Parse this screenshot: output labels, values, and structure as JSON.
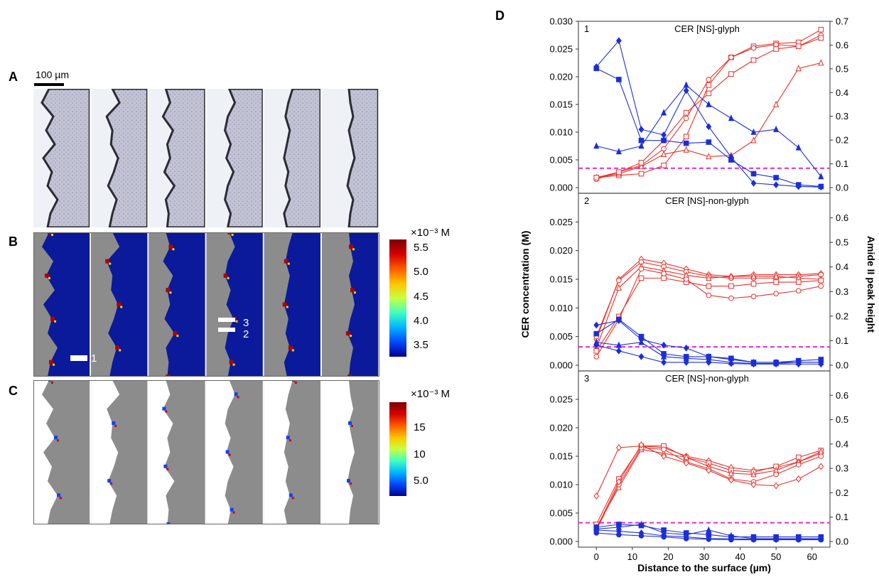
{
  "panels": {
    "A": {
      "letter": "A",
      "scale_bar_label": "100 µm"
    },
    "B": {
      "letter": "B",
      "markers": [
        "1",
        "3",
        "2"
      ],
      "colorbar": {
        "title": "×10⁻³ M",
        "ticks": [
          "5.5",
          "5.0",
          "4.5",
          "4.0",
          "3.5"
        ]
      }
    },
    "C": {
      "letter": "C",
      "colorbar": {
        "title": "×10⁻³ M",
        "ticks": [
          "15",
          "10",
          "5.0"
        ]
      }
    },
    "D": {
      "letter": "D"
    }
  },
  "colors": {
    "background_map_B": "#0a1a9a",
    "tissue_gray": "#8c8c8c",
    "series_red": "#e8312a",
    "series_blue": "#1c2fd6",
    "threshold_magenta": "#e22ad8"
  },
  "chart_data": [
    {
      "type": "line",
      "panel_number": "1",
      "title": "CER [NS]-glyph",
      "ylabel_left": "CER concentration (M)",
      "ylabel_right": "Amide II peak height",
      "xlabel": "Distance to the surface (µm)",
      "xlim": [
        -5,
        65
      ],
      "ylim_left": [
        0,
        0.03
      ],
      "ylim_right": [
        0,
        0.7
      ],
      "xticks": [
        "0",
        "10",
        "20",
        "30",
        "40",
        "50",
        "60"
      ],
      "yticks_left": [
        "0.000",
        "0.005",
        "0.010",
        "0.015",
        "0.020",
        "0.025",
        "0.030"
      ],
      "yticks_right": [
        "0.0",
        "0.1",
        "0.2",
        "0.3",
        "0.4",
        "0.5",
        "0.6",
        "0.7"
      ],
      "threshold": 0.0035,
      "x": [
        0,
        6.25,
        12.5,
        18.75,
        25,
        31.25,
        37.5,
        43.75,
        50,
        56.25,
        62.5
      ],
      "series_red": [
        {
          "marker": "square",
          "values": [
            0.0018,
            0.0022,
            0.0025,
            0.004,
            0.0092,
            0.0185,
            0.0235,
            0.0255,
            0.026,
            0.0262,
            0.0285
          ]
        },
        {
          "marker": "circle",
          "values": [
            0.0015,
            0.0028,
            0.004,
            0.007,
            0.0125,
            0.0195,
            0.0235,
            0.0252,
            0.0258,
            0.0255,
            0.0275
          ]
        },
        {
          "marker": "triangle",
          "values": [
            0.0018,
            0.0025,
            0.0038,
            0.006,
            0.0068,
            0.0056,
            0.0058,
            0.0085,
            0.015,
            0.0215,
            0.0225
          ]
        },
        {
          "marker": "square",
          "values": [
            0.0018,
            0.0028,
            0.0045,
            0.0085,
            0.0135,
            0.017,
            0.0205,
            0.023,
            0.025,
            0.0255,
            0.027
          ]
        }
      ],
      "series_blue": [
        {
          "marker": "square",
          "values": [
            0.0215,
            0.0195,
            0.0085,
            0.0085,
            0.008,
            0.0082,
            0.005,
            0.0025,
            0.0018,
            0.0005,
            0.0002
          ]
        },
        {
          "marker": "triangle",
          "values": [
            0.0075,
            0.0065,
            0.0075,
            0.0135,
            0.0185,
            0.015,
            0.0125,
            0.01,
            0.0105,
            0.0072,
            0.002
          ]
        },
        {
          "marker": "diamond",
          "values": [
            0.0218,
            0.0265,
            0.0105,
            0.0095,
            0.0175,
            0.011,
            0.0055,
            0.0008,
            0.0005,
            0.0002,
            0.0001
          ]
        }
      ]
    },
    {
      "type": "line",
      "panel_number": "2",
      "title": "CER [NS]-non-glyph",
      "xlim": [
        -5,
        65
      ],
      "ylim_left": [
        0,
        0.03
      ],
      "ylim_right": [
        0,
        0.7
      ],
      "yticks_left": [
        "0.000",
        "0.005",
        "0.010",
        "0.015",
        "0.020",
        "0.025"
      ],
      "yticks_right": [
        "0.0",
        "0.1",
        "0.2",
        "0.3",
        "0.4",
        "0.5",
        "0.6"
      ],
      "threshold": 0.0032,
      "x": [
        0,
        6.25,
        12.5,
        18.75,
        25,
        31.25,
        37.5,
        43.75,
        50,
        56.25,
        62.5
      ],
      "series_red": [
        {
          "marker": "diamond",
          "values": [
            0.0045,
            0.015,
            0.0185,
            0.0178,
            0.0168,
            0.0158,
            0.0155,
            0.0158,
            0.0158,
            0.0158,
            0.016
          ]
        },
        {
          "marker": "circle",
          "values": [
            0.005,
            0.0148,
            0.018,
            0.0172,
            0.0163,
            0.0155,
            0.0152,
            0.0152,
            0.0152,
            0.0155,
            0.0158
          ]
        },
        {
          "marker": "triangle",
          "values": [
            0.003,
            0.0135,
            0.0172,
            0.0165,
            0.0157,
            0.0152,
            0.0155,
            0.0155,
            0.0155,
            0.0152,
            0.015
          ]
        },
        {
          "marker": "square",
          "values": [
            0.0025,
            0.0085,
            0.0152,
            0.0152,
            0.0145,
            0.0138,
            0.0138,
            0.0142,
            0.0145,
            0.0145,
            0.0148
          ]
        },
        {
          "marker": "circle",
          "values": [
            0.0015,
            0.008,
            0.0168,
            0.016,
            0.015,
            0.0122,
            0.0117,
            0.012,
            0.0125,
            0.013,
            0.0138
          ]
        }
      ],
      "series_blue": [
        {
          "marker": "diamond",
          "values": [
            0.007,
            0.0078,
            0.0045,
            0.0035,
            0.003,
            0.0015,
            0.001,
            0.0005,
            0.0005,
            0.0005,
            0.0005
          ]
        },
        {
          "marker": "square",
          "values": [
            0.0055,
            0.008,
            0.005,
            0.002,
            0.0015,
            0.0015,
            0.0012,
            0.0005,
            0.0005,
            0.0008,
            0.001
          ]
        },
        {
          "marker": "triangle",
          "values": [
            0.004,
            0.0035,
            0.004,
            0.0015,
            0.0012,
            0.001,
            0.0005,
            0.0003,
            0.0003,
            0.0005,
            0.0005
          ]
        },
        {
          "marker": "diamond",
          "values": [
            0.0035,
            0.0025,
            0.0015,
            0.0005,
            0.0005,
            0.0005,
            0.0003,
            0.0002,
            0.0002,
            0.0002,
            0.0002
          ]
        }
      ]
    },
    {
      "type": "line",
      "panel_number": "3",
      "title": "CER [NS]-non-glyph",
      "xlim": [
        -5,
        65
      ],
      "ylim_left": [
        0,
        0.03
      ],
      "ylim_right": [
        0,
        0.7
      ],
      "yticks_left": [
        "0.000",
        "0.005",
        "0.010",
        "0.015",
        "0.020",
        "0.025"
      ],
      "yticks_right": [
        "0.0",
        "0.1",
        "0.2",
        "0.3",
        "0.4",
        "0.5",
        "0.6"
      ],
      "threshold": 0.0033,
      "x": [
        0,
        6.25,
        12.5,
        18.75,
        25,
        31.25,
        37.5,
        43.75,
        50,
        56.25,
        62.5
      ],
      "series_red": [
        {
          "marker": "diamond",
          "values": [
            0.008,
            0.0165,
            0.0168,
            0.0165,
            0.015,
            0.0142,
            0.013,
            0.0125,
            0.013,
            0.014,
            0.0155
          ]
        },
        {
          "marker": "square",
          "values": [
            0.003,
            0.011,
            0.0168,
            0.0168,
            0.0148,
            0.0138,
            0.0125,
            0.0122,
            0.0132,
            0.0148,
            0.016
          ]
        },
        {
          "marker": "triangle",
          "values": [
            0.0025,
            0.0095,
            0.0162,
            0.0155,
            0.0148,
            0.0132,
            0.012,
            0.0118,
            0.0125,
            0.014,
            0.0158
          ]
        },
        {
          "marker": "circle",
          "values": [
            0.002,
            0.01,
            0.0165,
            0.0162,
            0.014,
            0.0128,
            0.011,
            0.0105,
            0.0118,
            0.0135,
            0.015
          ]
        },
        {
          "marker": "diamond",
          "values": [
            0.0022,
            0.0105,
            0.017,
            0.015,
            0.0138,
            0.0125,
            0.0108,
            0.01,
            0.0098,
            0.011,
            0.0132
          ]
        }
      ],
      "series_blue": [
        {
          "marker": "square",
          "values": [
            0.0025,
            0.003,
            0.0028,
            0.002,
            0.0015,
            0.0012,
            0.0008,
            0.0008,
            0.0008,
            0.0008,
            0.0008
          ]
        },
        {
          "marker": "triangle",
          "values": [
            0.0022,
            0.0025,
            0.003,
            0.0015,
            0.0012,
            0.002,
            0.001,
            0.0005,
            0.0005,
            0.0005,
            0.0005
          ]
        },
        {
          "marker": "diamond",
          "values": [
            0.002,
            0.0018,
            0.0015,
            0.001,
            0.0008,
            0.0005,
            0.0005,
            0.0004,
            0.0004,
            0.0004,
            0.0004
          ]
        },
        {
          "marker": "circle",
          "values": [
            0.0015,
            0.0012,
            0.001,
            0.0008,
            0.0005,
            0.0004,
            0.0003,
            0.0003,
            0.0003,
            0.0003,
            0.0003
          ]
        }
      ]
    }
  ]
}
